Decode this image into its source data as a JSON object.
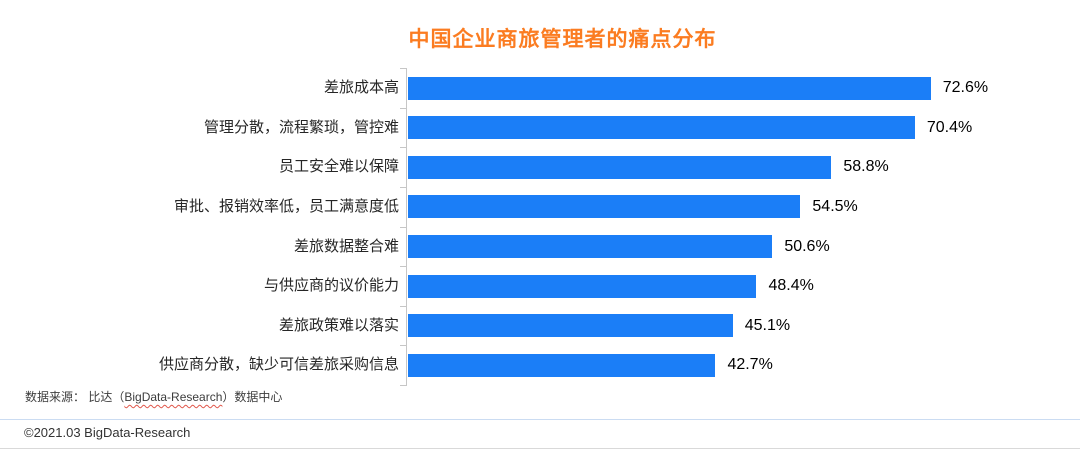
{
  "title": "中国企业商旅管理者的痛点分布",
  "colors": {
    "title": "#fb7c21",
    "bar": "#1b7ef7",
    "axis": "#c6c6c6",
    "separator_top": "#cbdcf2",
    "separator_bottom": "#d9d9d9"
  },
  "chart_data": {
    "type": "bar",
    "orientation": "horizontal",
    "title": "中国企业商旅管理者的痛点分布",
    "categories": [
      "差旅成本高",
      "管理分散，流程繁琐，管控难",
      "员工安全难以保障",
      "审批、报销效率低，员工满意度低",
      "差旅数据整合难",
      "与供应商的议价能力",
      "差旅政策难以落实",
      "供应商分散，缺少可信差旅采购信息"
    ],
    "values": [
      72.6,
      70.4,
      58.8,
      54.5,
      50.6,
      48.4,
      45.1,
      42.7
    ],
    "value_labels": [
      "72.6%",
      "70.4%",
      "58.8%",
      "54.5%",
      "50.6%",
      "48.4%",
      "45.1%",
      "42.7%"
    ],
    "unit": "%",
    "xlim": [
      0,
      90
    ],
    "grid": false,
    "legend": false,
    "data_labels": "outside-end",
    "bar_color": "#1b7ef7"
  },
  "footer": {
    "source_prefix": "数据来源： 比达（",
    "source_brand": "BigData-Research",
    "source_suffix": "）数据中心",
    "copyright": "©2021.03 BigData-Research"
  }
}
